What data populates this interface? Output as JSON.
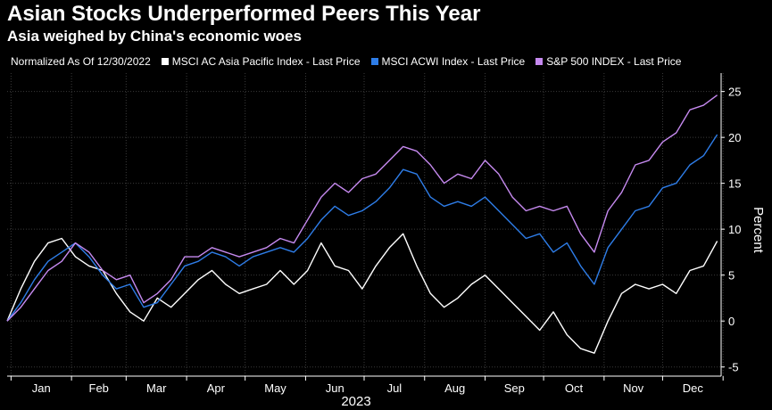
{
  "title": "Asian Stocks Underperformed Peers This Year",
  "subtitle": "Asia weighed by China's economic woes",
  "legend_note": "Normalized As Of 12/30/2022",
  "chart_data": {
    "type": "line",
    "title": "Asian Stocks Underperformed Peers This Year",
    "subtitle": "Asia weighed by China's economic woes",
    "xlabel": "2023",
    "ylabel": "Percent",
    "ylim": [
      -6,
      27
    ],
    "yticks": [
      -5,
      0,
      5,
      10,
      15,
      20,
      25
    ],
    "x_start": "2022-12-30",
    "x_end": "2023-12-31",
    "month_labels": [
      "Jan",
      "Feb",
      "Mar",
      "Apr",
      "May",
      "Jun",
      "Jul",
      "Aug",
      "Sep",
      "Oct",
      "Nov",
      "Dec"
    ],
    "grid": true,
    "legend_position": "top",
    "series": [
      {
        "name": "MSCI AC Asia Pacific Index - Last Price",
        "color": "#ffffff",
        "x": [
          "2022-12-30",
          "2023-01-06",
          "2023-01-13",
          "2023-01-20",
          "2023-01-27",
          "2023-02-03",
          "2023-02-10",
          "2023-02-17",
          "2023-02-24",
          "2023-03-03",
          "2023-03-10",
          "2023-03-17",
          "2023-03-24",
          "2023-03-31",
          "2023-04-07",
          "2023-04-14",
          "2023-04-21",
          "2023-04-28",
          "2023-05-05",
          "2023-05-12",
          "2023-05-19",
          "2023-05-26",
          "2023-06-02",
          "2023-06-09",
          "2023-06-16",
          "2023-06-23",
          "2023-06-30",
          "2023-07-07",
          "2023-07-14",
          "2023-07-21",
          "2023-07-28",
          "2023-08-04",
          "2023-08-11",
          "2023-08-18",
          "2023-08-25",
          "2023-09-01",
          "2023-09-08",
          "2023-09-15",
          "2023-09-22",
          "2023-09-29",
          "2023-10-06",
          "2023-10-13",
          "2023-10-20",
          "2023-10-27",
          "2023-11-03",
          "2023-11-10",
          "2023-11-17",
          "2023-11-24",
          "2023-12-01",
          "2023-12-08",
          "2023-12-15",
          "2023-12-22",
          "2023-12-29"
        ],
        "values": [
          0,
          3.5,
          6.5,
          8.5,
          9,
          7,
          6,
          5.5,
          3,
          1,
          0,
          2.5,
          1.5,
          3,
          4.5,
          5.5,
          4,
          3,
          3.5,
          4,
          5.5,
          4,
          5.5,
          8.5,
          6,
          5.5,
          3.5,
          6,
          8,
          9.5,
          6,
          3,
          1.5,
          2.5,
          4,
          5,
          3.5,
          2,
          0.5,
          -1,
          1,
          -1.5,
          -3,
          -3.5,
          0,
          3,
          4,
          3.5,
          4,
          3,
          5.5,
          6,
          8.7
        ]
      },
      {
        "name": "MSCI ACWI Index - Last Price",
        "color": "#2e7de8",
        "x": [
          "2022-12-30",
          "2023-01-06",
          "2023-01-13",
          "2023-01-20",
          "2023-01-27",
          "2023-02-03",
          "2023-02-10",
          "2023-02-17",
          "2023-02-24",
          "2023-03-03",
          "2023-03-10",
          "2023-03-17",
          "2023-03-24",
          "2023-03-31",
          "2023-04-07",
          "2023-04-14",
          "2023-04-21",
          "2023-04-28",
          "2023-05-05",
          "2023-05-12",
          "2023-05-19",
          "2023-05-26",
          "2023-06-02",
          "2023-06-09",
          "2023-06-16",
          "2023-06-23",
          "2023-06-30",
          "2023-07-07",
          "2023-07-14",
          "2023-07-21",
          "2023-07-28",
          "2023-08-04",
          "2023-08-11",
          "2023-08-18",
          "2023-08-25",
          "2023-09-01",
          "2023-09-08",
          "2023-09-15",
          "2023-09-22",
          "2023-09-29",
          "2023-10-06",
          "2023-10-13",
          "2023-10-20",
          "2023-10-27",
          "2023-11-03",
          "2023-11-10",
          "2023-11-17",
          "2023-11-24",
          "2023-12-01",
          "2023-12-08",
          "2023-12-15",
          "2023-12-22",
          "2023-12-29"
        ],
        "values": [
          0,
          2,
          4.5,
          6.5,
          7.5,
          8.5,
          7,
          5,
          3.5,
          4,
          1.5,
          2,
          4,
          6,
          6.5,
          7.5,
          7,
          6,
          7,
          7.5,
          8,
          7.5,
          9,
          11,
          12.5,
          11.5,
          12,
          13,
          14.5,
          16.5,
          16,
          13.5,
          12.5,
          13,
          12.5,
          13.5,
          12,
          10.5,
          9,
          9.5,
          7.5,
          8.5,
          6,
          4,
          8,
          10,
          12,
          12.5,
          14.5,
          15,
          17,
          18,
          20.3
        ]
      },
      {
        "name": "S&P 500 INDEX - Last Price",
        "color": "#c68af0",
        "x": [
          "2022-12-30",
          "2023-01-06",
          "2023-01-13",
          "2023-01-20",
          "2023-01-27",
          "2023-02-03",
          "2023-02-10",
          "2023-02-17",
          "2023-02-24",
          "2023-03-03",
          "2023-03-10",
          "2023-03-17",
          "2023-03-24",
          "2023-03-31",
          "2023-04-07",
          "2023-04-14",
          "2023-04-21",
          "2023-04-28",
          "2023-05-05",
          "2023-05-12",
          "2023-05-19",
          "2023-05-26",
          "2023-06-02",
          "2023-06-09",
          "2023-06-16",
          "2023-06-23",
          "2023-06-30",
          "2023-07-07",
          "2023-07-14",
          "2023-07-21",
          "2023-07-28",
          "2023-08-04",
          "2023-08-11",
          "2023-08-18",
          "2023-08-25",
          "2023-09-01",
          "2023-09-08",
          "2023-09-15",
          "2023-09-22",
          "2023-09-29",
          "2023-10-06",
          "2023-10-13",
          "2023-10-20",
          "2023-10-27",
          "2023-11-03",
          "2023-11-10",
          "2023-11-17",
          "2023-11-24",
          "2023-12-01",
          "2023-12-08",
          "2023-12-15",
          "2023-12-22",
          "2023-12-29"
        ],
        "values": [
          0,
          1.5,
          3.5,
          5.5,
          6.5,
          8.5,
          7.5,
          5.5,
          4.5,
          5,
          2,
          3,
          4.5,
          7,
          7,
          8,
          7.5,
          7,
          7.5,
          8,
          9,
          8.5,
          11,
          13.5,
          15,
          14,
          15.5,
          16,
          17.5,
          19,
          18.5,
          17,
          15,
          16,
          15.5,
          17.5,
          16,
          13.5,
          12,
          12.5,
          12,
          12.5,
          9.5,
          7.5,
          12,
          14,
          17,
          17.5,
          19.5,
          20.5,
          23,
          23.5,
          24.6
        ]
      }
    ]
  }
}
